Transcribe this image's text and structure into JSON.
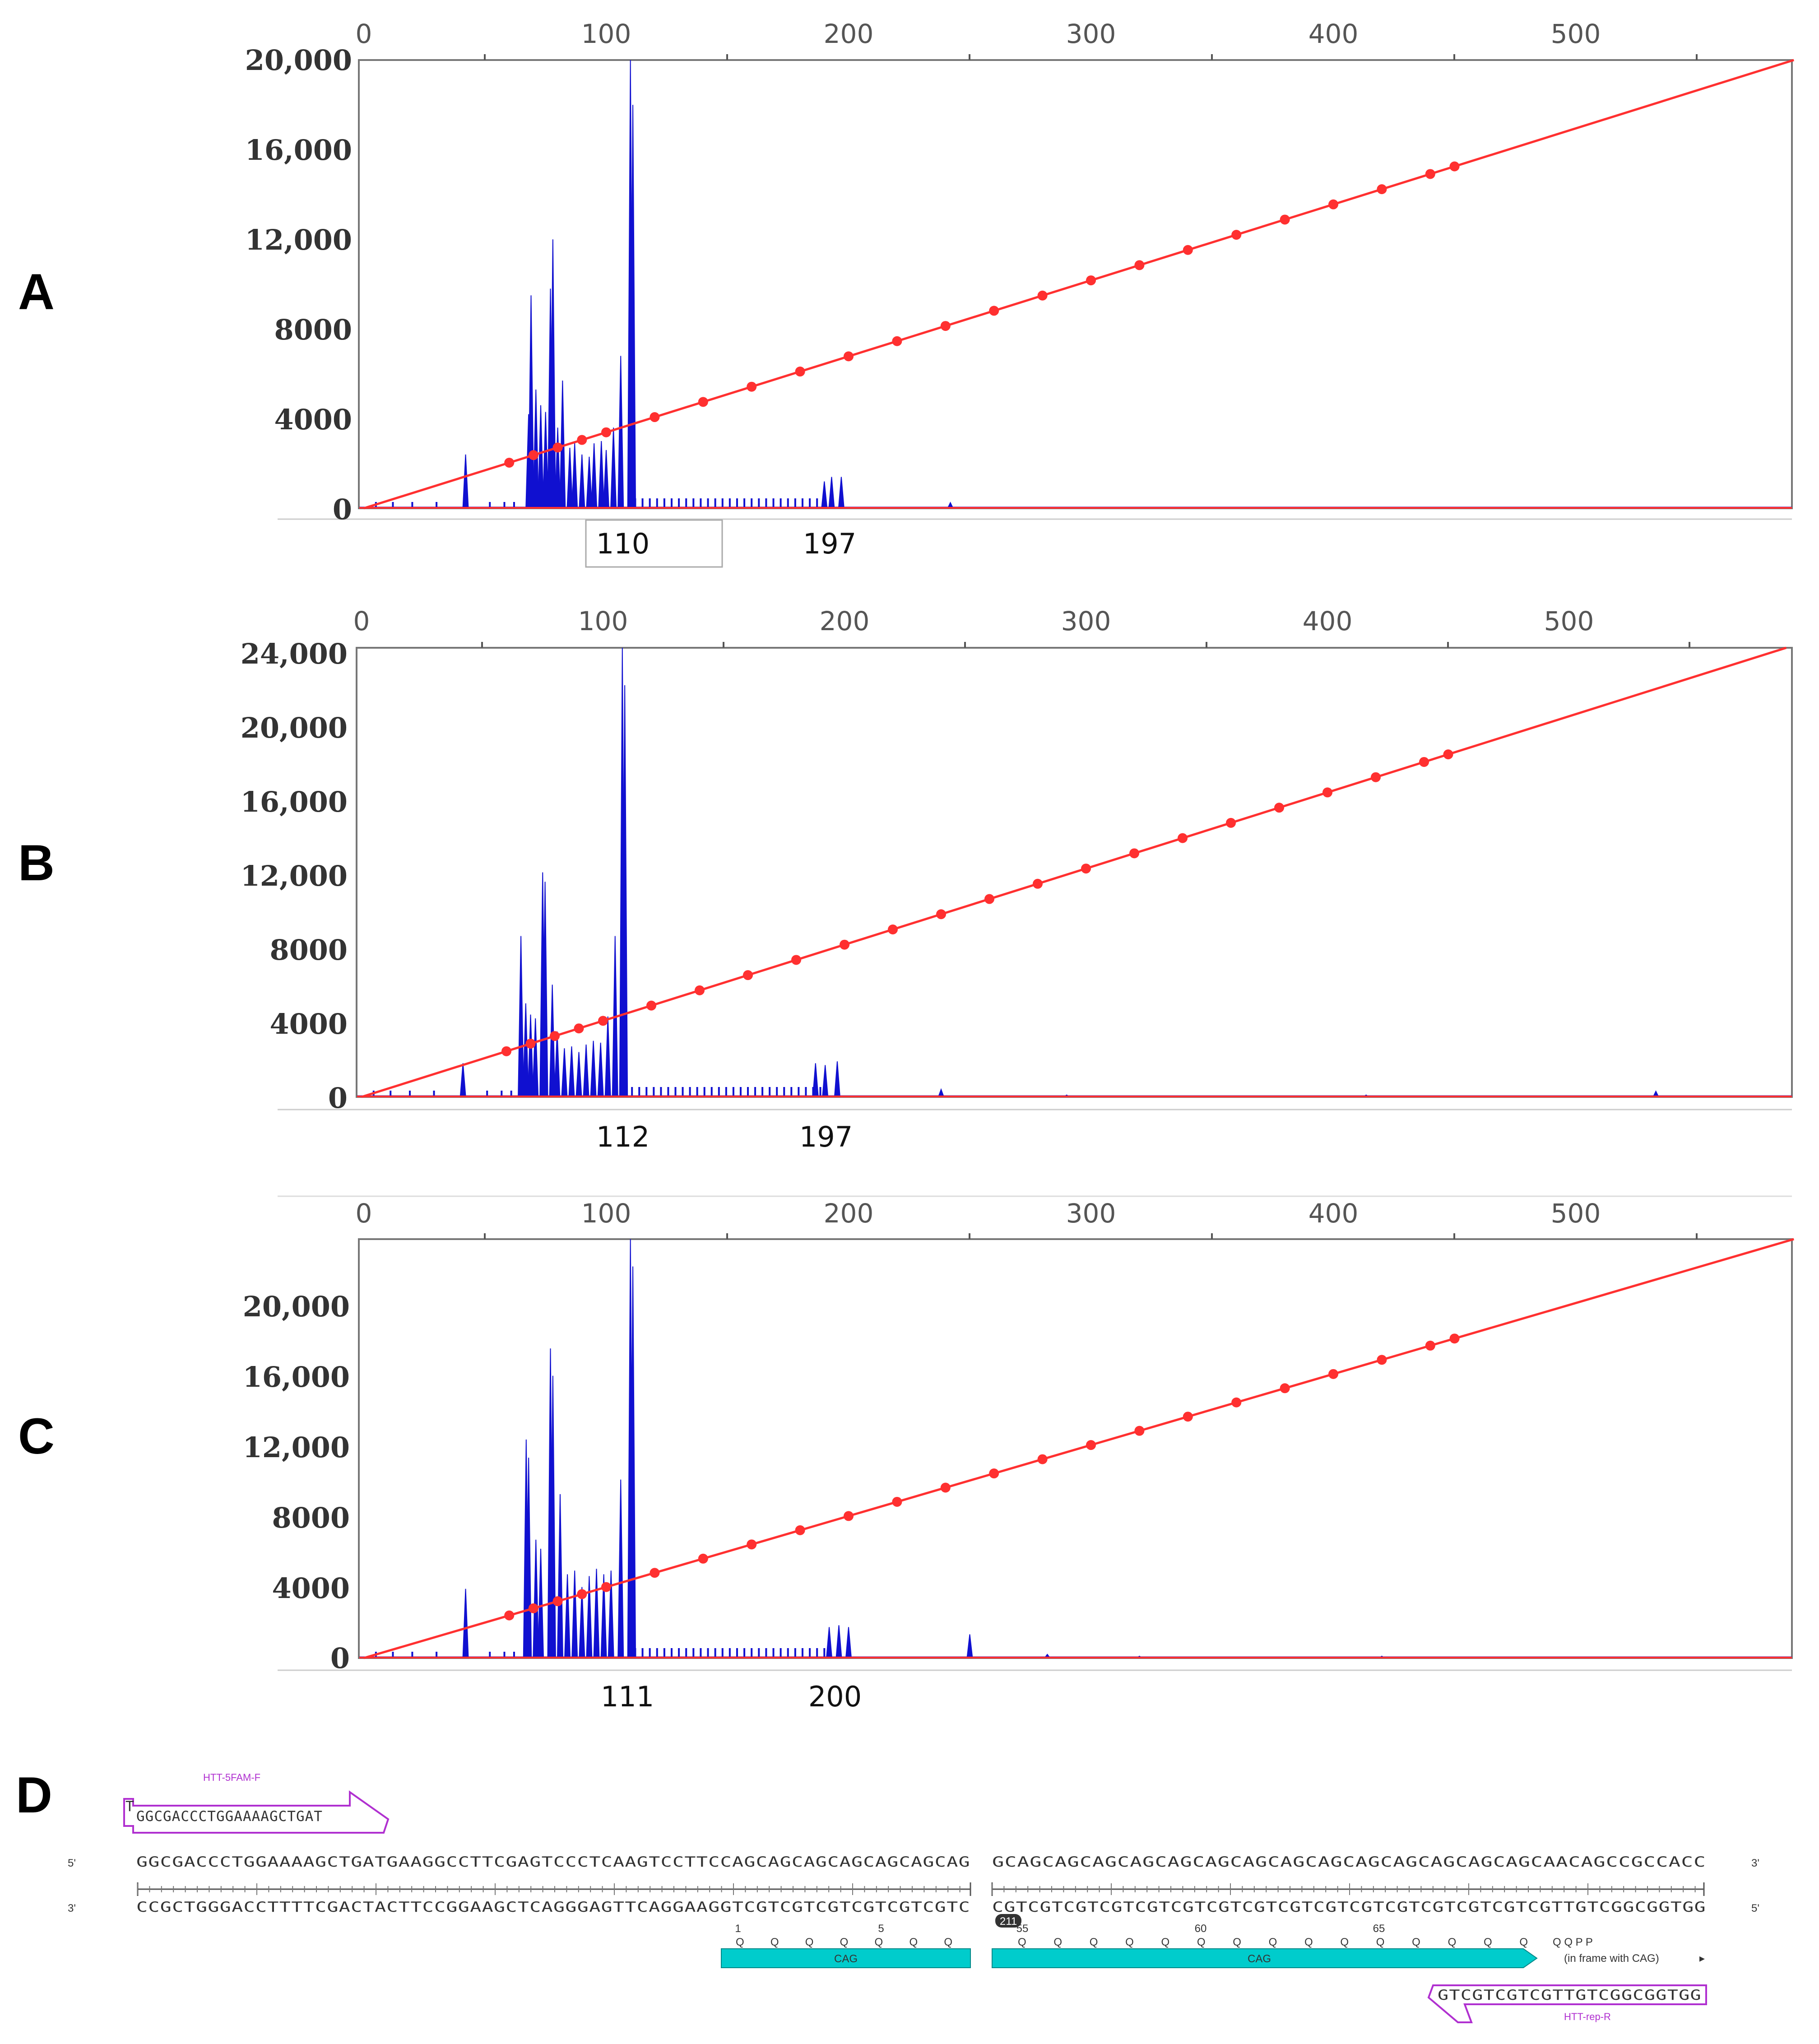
{
  "chart_data": [
    {
      "type": "line",
      "panel": "A",
      "xlim": [
        0,
        590
      ],
      "ylim": [
        0,
        20000
      ],
      "x_ticks": [
        "0",
        "100",
        "200",
        "300",
        "400",
        "500"
      ],
      "y_ticks": [
        "0",
        "4000",
        "8000",
        "12,000",
        "16,000",
        "20,000"
      ],
      "sizing_curve": {
        "start": [
          0,
          0
        ],
        "end": [
          590,
          20000
        ]
      },
      "trace_peaks": [
        {
          "x": 42,
          "y": 2400
        },
        {
          "x": 68,
          "y": 4200
        },
        {
          "x": 69,
          "y": 9500
        },
        {
          "x": 71,
          "y": 5300
        },
        {
          "x": 73,
          "y": 4600
        },
        {
          "x": 75,
          "y": 4300
        },
        {
          "x": 77,
          "y": 9800
        },
        {
          "x": 78,
          "y": 12000
        },
        {
          "x": 80,
          "y": 3600
        },
        {
          "x": 82,
          "y": 5700
        },
        {
          "x": 85,
          "y": 2700
        },
        {
          "x": 87,
          "y": 2900
        },
        {
          "x": 90,
          "y": 2400
        },
        {
          "x": 93,
          "y": 2300
        },
        {
          "x": 95,
          "y": 2900
        },
        {
          "x": 98,
          "y": 3000
        },
        {
          "x": 100,
          "y": 2600
        },
        {
          "x": 103,
          "y": 3600
        },
        {
          "x": 106,
          "y": 6800
        },
        {
          "x": 110,
          "y": 20000
        },
        {
          "x": 111,
          "y": 18000
        },
        {
          "x": 190,
          "y": 1200
        },
        {
          "x": 193,
          "y": 1400
        },
        {
          "x": 197,
          "y": 1400
        },
        {
          "x": 242,
          "y": 250
        }
      ],
      "peak_labels": [
        "110",
        "197"
      ]
    },
    {
      "type": "line",
      "panel": "B",
      "xlim": [
        0,
        590
      ],
      "ylim": [
        0,
        24000
      ],
      "x_ticks": [
        "0",
        "100",
        "200",
        "300",
        "400",
        "500"
      ],
      "y_ticks": [
        "0",
        "4000",
        "8000",
        "12,000",
        "16,000",
        "20,000",
        "24,000"
      ],
      "sizing_curve": {
        "start": [
          0,
          0
        ],
        "end": [
          590,
          24000
        ]
      },
      "trace_peaks": [
        {
          "x": 42,
          "y": 1800
        },
        {
          "x": 66,
          "y": 8600
        },
        {
          "x": 68,
          "y": 5000
        },
        {
          "x": 70,
          "y": 4400
        },
        {
          "x": 72,
          "y": 4200
        },
        {
          "x": 75,
          "y": 12000
        },
        {
          "x": 76,
          "y": 11500
        },
        {
          "x": 79,
          "y": 6000
        },
        {
          "x": 81,
          "y": 3500
        },
        {
          "x": 84,
          "y": 2600
        },
        {
          "x": 87,
          "y": 2700
        },
        {
          "x": 90,
          "y": 2400
        },
        {
          "x": 93,
          "y": 2800
        },
        {
          "x": 96,
          "y": 3000
        },
        {
          "x": 99,
          "y": 2900
        },
        {
          "x": 102,
          "y": 4300
        },
        {
          "x": 105,
          "y": 8600
        },
        {
          "x": 108,
          "y": 24000
        },
        {
          "x": 109,
          "y": 22000
        },
        {
          "x": 188,
          "y": 1800
        },
        {
          "x": 192,
          "y": 1700
        },
        {
          "x": 197,
          "y": 1900
        },
        {
          "x": 240,
          "y": 400
        },
        {
          "x": 292,
          "y": 100
        },
        {
          "x": 416,
          "y": 100
        },
        {
          "x": 536,
          "y": 300
        }
      ],
      "peak_labels": [
        "112",
        "197"
      ]
    },
    {
      "type": "line",
      "panel": "C",
      "xlim": [
        0,
        590
      ],
      "ylim": [
        0,
        23000
      ],
      "x_ticks": [
        "0",
        "100",
        "200",
        "300",
        "400",
        "500"
      ],
      "y_ticks": [
        "0",
        "4000",
        "8000",
        "12,000",
        "16,000",
        "20,000"
      ],
      "sizing_curve": {
        "start": [
          0,
          0
        ],
        "end": [
          590,
          23000
        ]
      },
      "trace_peaks": [
        {
          "x": 42,
          "y": 3800
        },
        {
          "x": 67,
          "y": 12000
        },
        {
          "x": 68,
          "y": 11000
        },
        {
          "x": 71,
          "y": 6500
        },
        {
          "x": 73,
          "y": 6000
        },
        {
          "x": 77,
          "y": 17000
        },
        {
          "x": 78,
          "y": 15500
        },
        {
          "x": 81,
          "y": 9000
        },
        {
          "x": 84,
          "y": 4600
        },
        {
          "x": 87,
          "y": 4800
        },
        {
          "x": 90,
          "y": 3900
        },
        {
          "x": 93,
          "y": 4500
        },
        {
          "x": 96,
          "y": 4900
        },
        {
          "x": 99,
          "y": 4600
        },
        {
          "x": 102,
          "y": 4800
        },
        {
          "x": 106,
          "y": 9800
        },
        {
          "x": 110,
          "y": 23000
        },
        {
          "x": 111,
          "y": 21500
        },
        {
          "x": 192,
          "y": 1700
        },
        {
          "x": 196,
          "y": 1800
        },
        {
          "x": 200,
          "y": 1700
        },
        {
          "x": 250,
          "y": 1300
        },
        {
          "x": 282,
          "y": 200
        },
        {
          "x": 320,
          "y": 100
        },
        {
          "x": 420,
          "y": 100
        }
      ],
      "peak_labels": [
        "111",
        "200"
      ]
    }
  ],
  "panel_letters": [
    "A",
    "B",
    "C",
    "D"
  ],
  "sequence": {
    "five_prime": "5'",
    "three_prime": "3'",
    "top_left": "GGCGACCCTGGAAAAGCTGATGAAGGCCTTCGAGTCCCTCAAGTCCTTCCAGCAGCAGCAGCAGCAGCAG",
    "top_right": "GCAGCAGCAGCAGCAGCAGCAGCAGCAGCAGCAGCAGCAGCAGCAACAGCCGCCACC",
    "bottom_left": "CCGCTGGGACCTTTTCGACTACTTCCGGAAGCTCAGGGAGTTCAGGAAGGTCGTCGTCGTCGTCGTCGTC",
    "bottom_right": "CGTCGTCGTCGTCGTCGTCGTCGTCGTCGTCGTCGTCGTCGTCGTCGTTGTCGGCGGTGG",
    "forward_primer_name": "HTT-5FAM-F",
    "forward_primer_seq": "GGCGACCCTGGAAAAGCTGAT",
    "forward_primer_cap": "T",
    "reverse_primer_name": "HTT-rep-R",
    "reverse_primer_seq": "GTCGTCGTCGTTGTCGGCGGTGG",
    "feature_label": "CAG",
    "frame_note": "(in frame with CAG)",
    "break_badge": "211",
    "aa_left": "Q Q Q Q Q Q Q",
    "aa_right": "Q Q Q Q Q Q Q Q Q Q Q Q Q Q Q",
    "aa_tail": "Q   Q   P   P",
    "pos_1": "1",
    "pos_5": "5",
    "pos_55": "55",
    "pos_60": "60",
    "pos_65": "65"
  },
  "colors": {
    "trace": "#1010d0",
    "sizing": "#ff3030",
    "primer": "#b030d0",
    "feature": "#00cccc"
  }
}
